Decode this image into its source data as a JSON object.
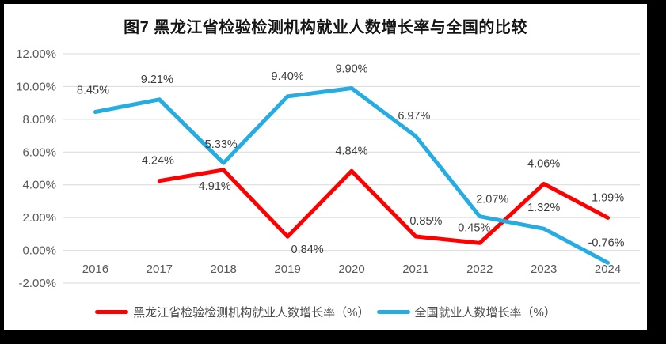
{
  "page": {
    "background_color": "#000000",
    "chart_background_color": "#ffffff",
    "gridline_color": "#d9d9d9",
    "axis_text_color": "#595959",
    "data_label_color": "#3d3d3d"
  },
  "title": "图7 黑龙江省检验检测机构就业人数增长率与全国的比较",
  "chart_data": {
    "type": "line",
    "title": "图7 黑龙江省检验检测机构就业人数增长率与全国的比较",
    "categories": [
      "2016",
      "2017",
      "2018",
      "2019",
      "2020",
      "2021",
      "2022",
      "2023",
      "2024"
    ],
    "series": [
      {
        "name": "黑龙江省检验检测机构就业人数增长率（%）",
        "color": "#ff0000",
        "values": [
          null,
          4.24,
          4.91,
          0.84,
          4.84,
          0.85,
          0.45,
          4.06,
          1.99
        ],
        "labels": [
          null,
          "4.24%",
          "4.91%",
          "0.84%",
          "4.84%",
          "0.85%",
          "0.45%",
          "4.06%",
          "1.99%"
        ],
        "label_offsets": [
          null,
          [
            -2,
            -26
          ],
          [
            -11,
            20
          ],
          [
            25,
            16
          ],
          [
            0,
            -26
          ],
          [
            13,
            -20
          ],
          [
            -7,
            -20
          ],
          [
            0,
            -26
          ],
          [
            0,
            -26
          ]
        ]
      },
      {
        "name": "全国就业人数增长率（%）",
        "color": "#25ace3",
        "values": [
          8.45,
          9.21,
          5.33,
          9.4,
          9.9,
          6.97,
          2.07,
          1.32,
          -0.76
        ],
        "labels": [
          "8.45%",
          "9.21%",
          "5.33%",
          "9.40%",
          "9.90%",
          "6.97%",
          "2.07%",
          "1.32%",
          "-0.76%"
        ],
        "label_offsets": [
          [
            -3,
            -28
          ],
          [
            -3,
            -26
          ],
          [
            -3,
            -24
          ],
          [
            0,
            -26
          ],
          [
            0,
            -25
          ],
          [
            -2,
            -26
          ],
          [
            16,
            -22
          ],
          [
            0,
            -27
          ],
          [
            -2,
            -26
          ]
        ]
      }
    ],
    "y_axis": {
      "min": -2,
      "max": 12,
      "step": 2,
      "tick_labels": [
        "12.00%",
        "10.00%",
        "8.00%",
        "6.00%",
        "4.00%",
        "2.00%",
        "0.00%",
        "-2.00%"
      ],
      "tick_values": [
        12,
        10,
        8,
        6,
        4,
        2,
        0,
        -2
      ]
    },
    "grid": true,
    "legend_position": "bottom"
  }
}
